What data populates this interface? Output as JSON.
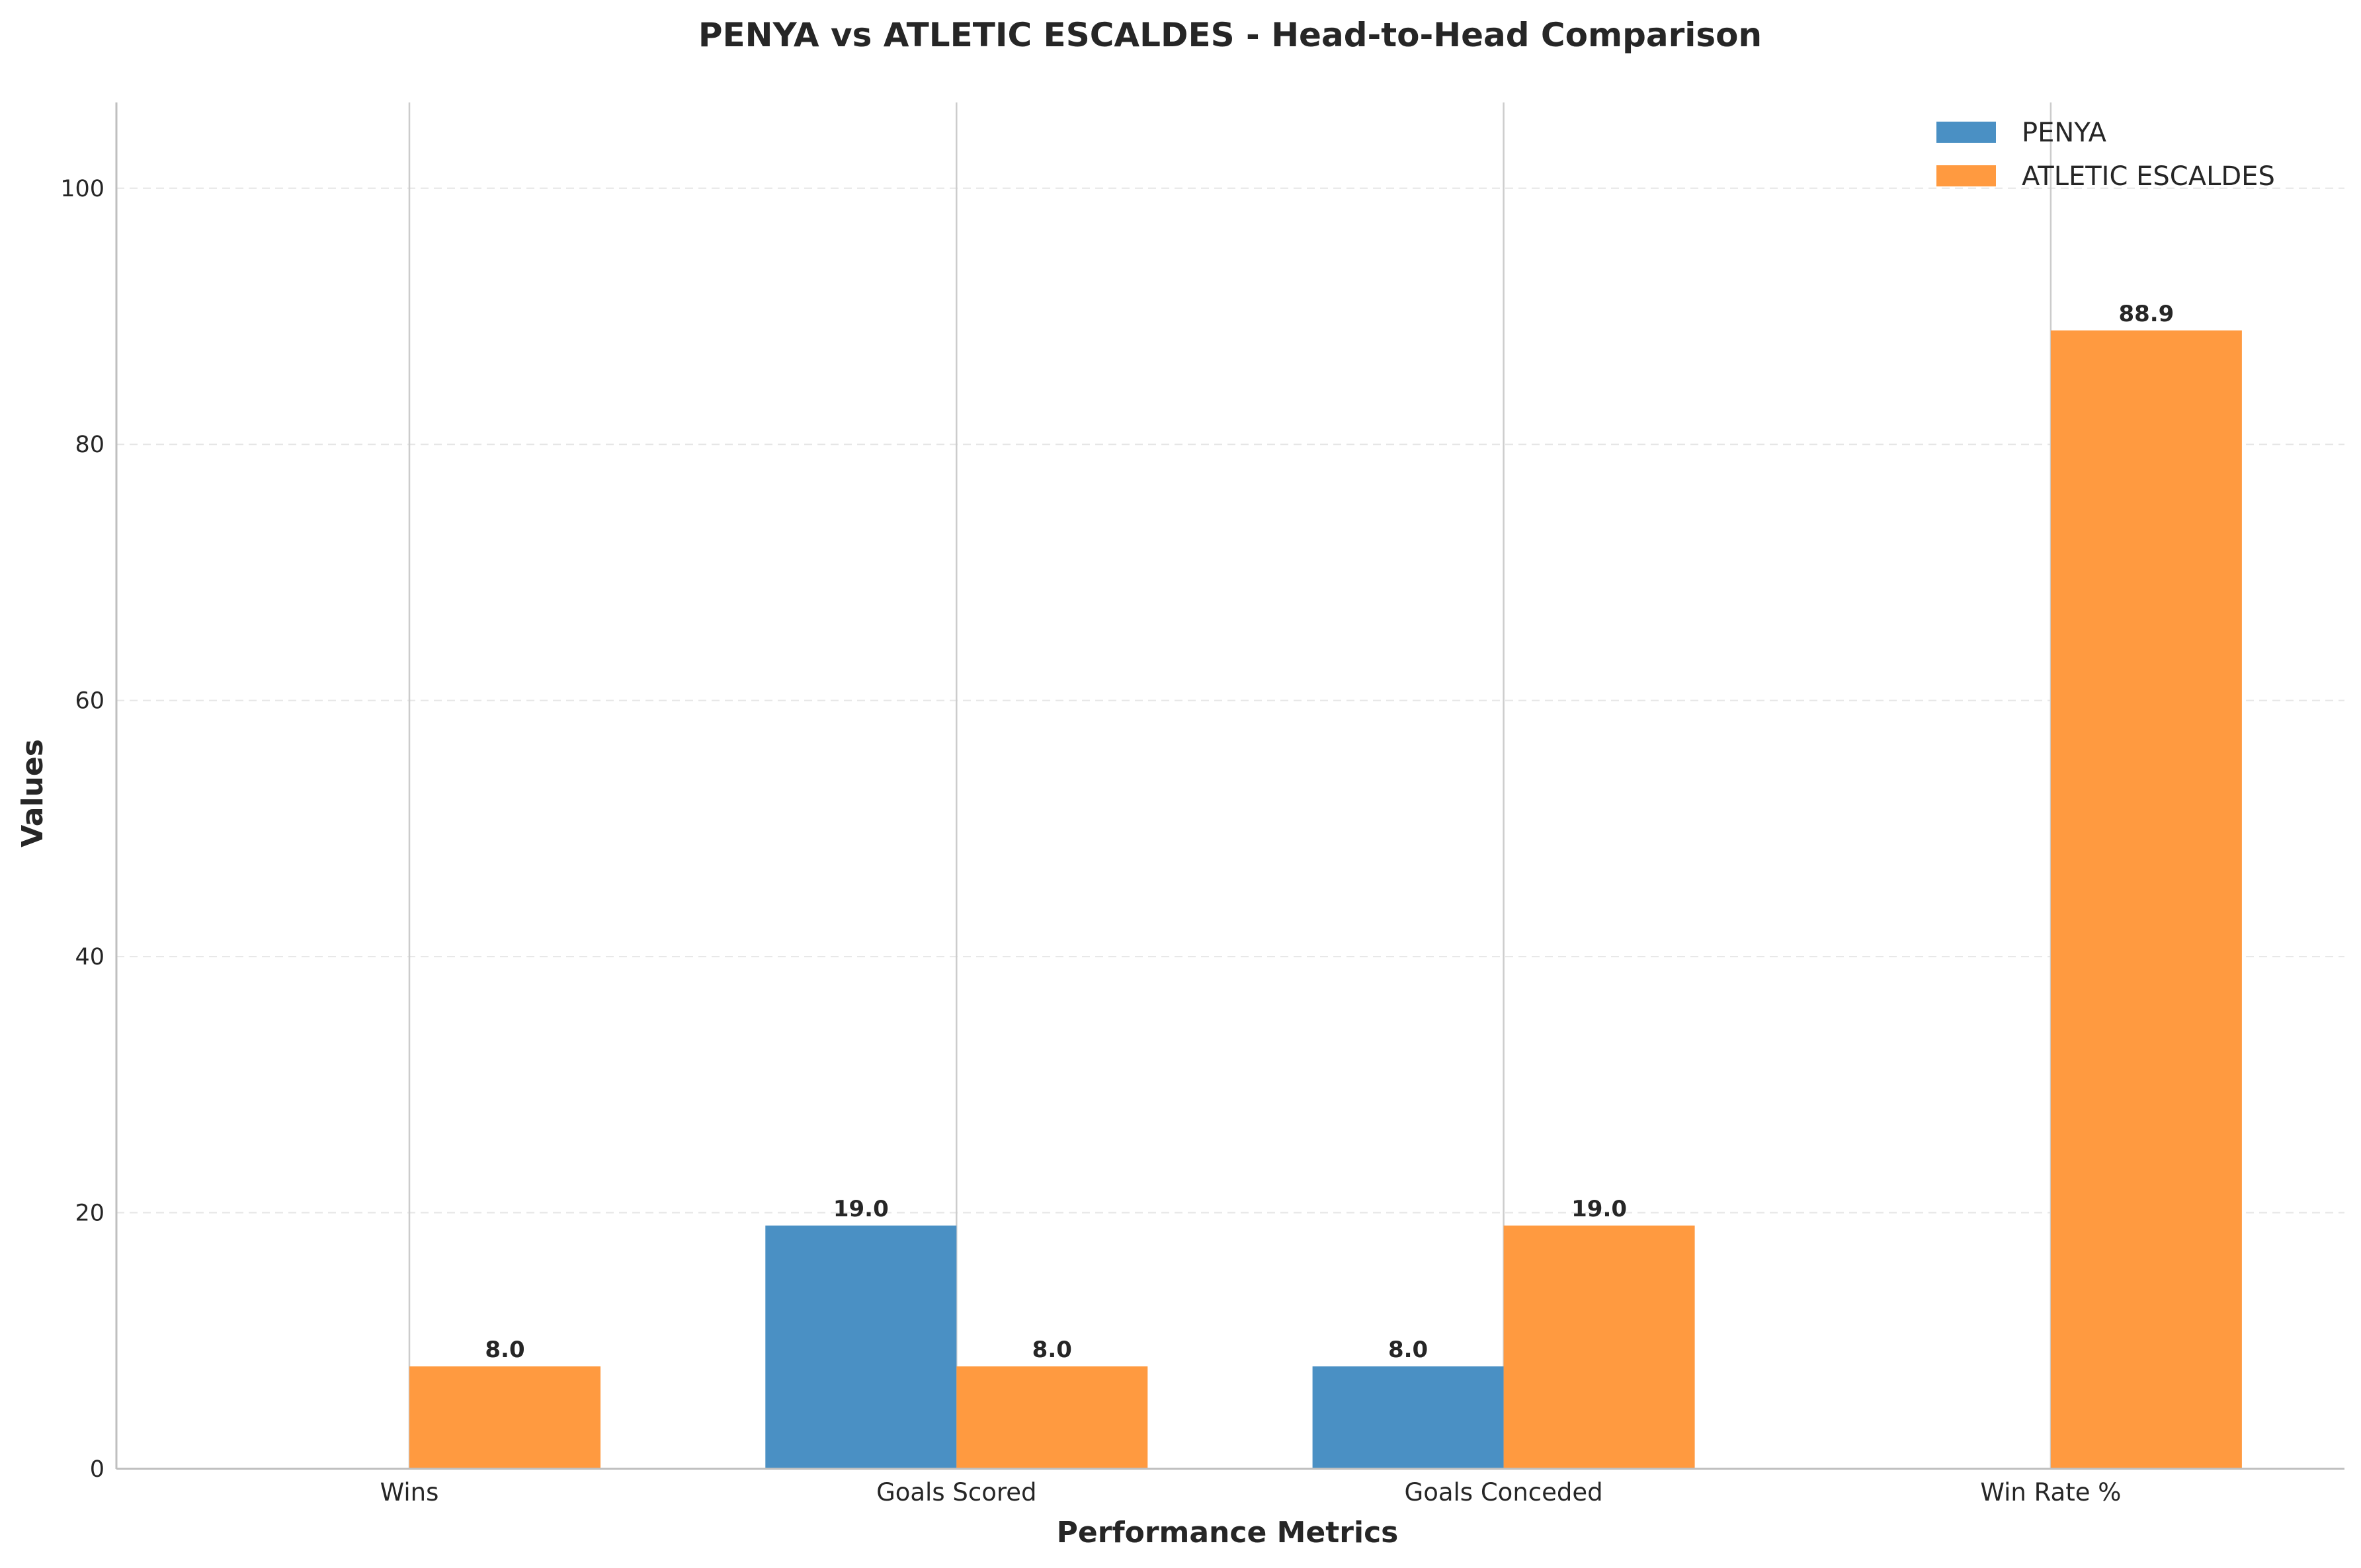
{
  "colors": {
    "PENYA": "#4a90c4",
    "ATLETIC ESCALDES": "#ff9a40",
    "grid": "#cccccc",
    "axis": "#bfbfbf"
  },
  "chart_data": {
    "type": "bar",
    "title": "PENYA vs ATLETIC ESCALDES - Head-to-Head Comparison",
    "xlabel": "Performance Metrics",
    "ylabel": "Values",
    "categories": [
      "Wins",
      "Goals Scored",
      "Goals Conceded",
      "Win Rate %"
    ],
    "series": [
      {
        "name": "PENYA",
        "values": [
          0,
          19.0,
          8.0,
          0
        ]
      },
      {
        "name": "ATLETIC ESCALDES",
        "values": [
          8.0,
          8.0,
          19.0,
          88.9
        ]
      }
    ],
    "data_labels": [
      [
        "",
        "19.0",
        "8.0",
        ""
      ],
      [
        "8.0",
        "8.0",
        "19.0",
        "88.9"
      ]
    ],
    "ylim": [
      0,
      106.7
    ],
    "yticks": [
      0,
      20,
      40,
      60,
      80,
      100
    ],
    "grid": "y dashed; vertical lines at category centers",
    "legend_position": "top-right"
  }
}
